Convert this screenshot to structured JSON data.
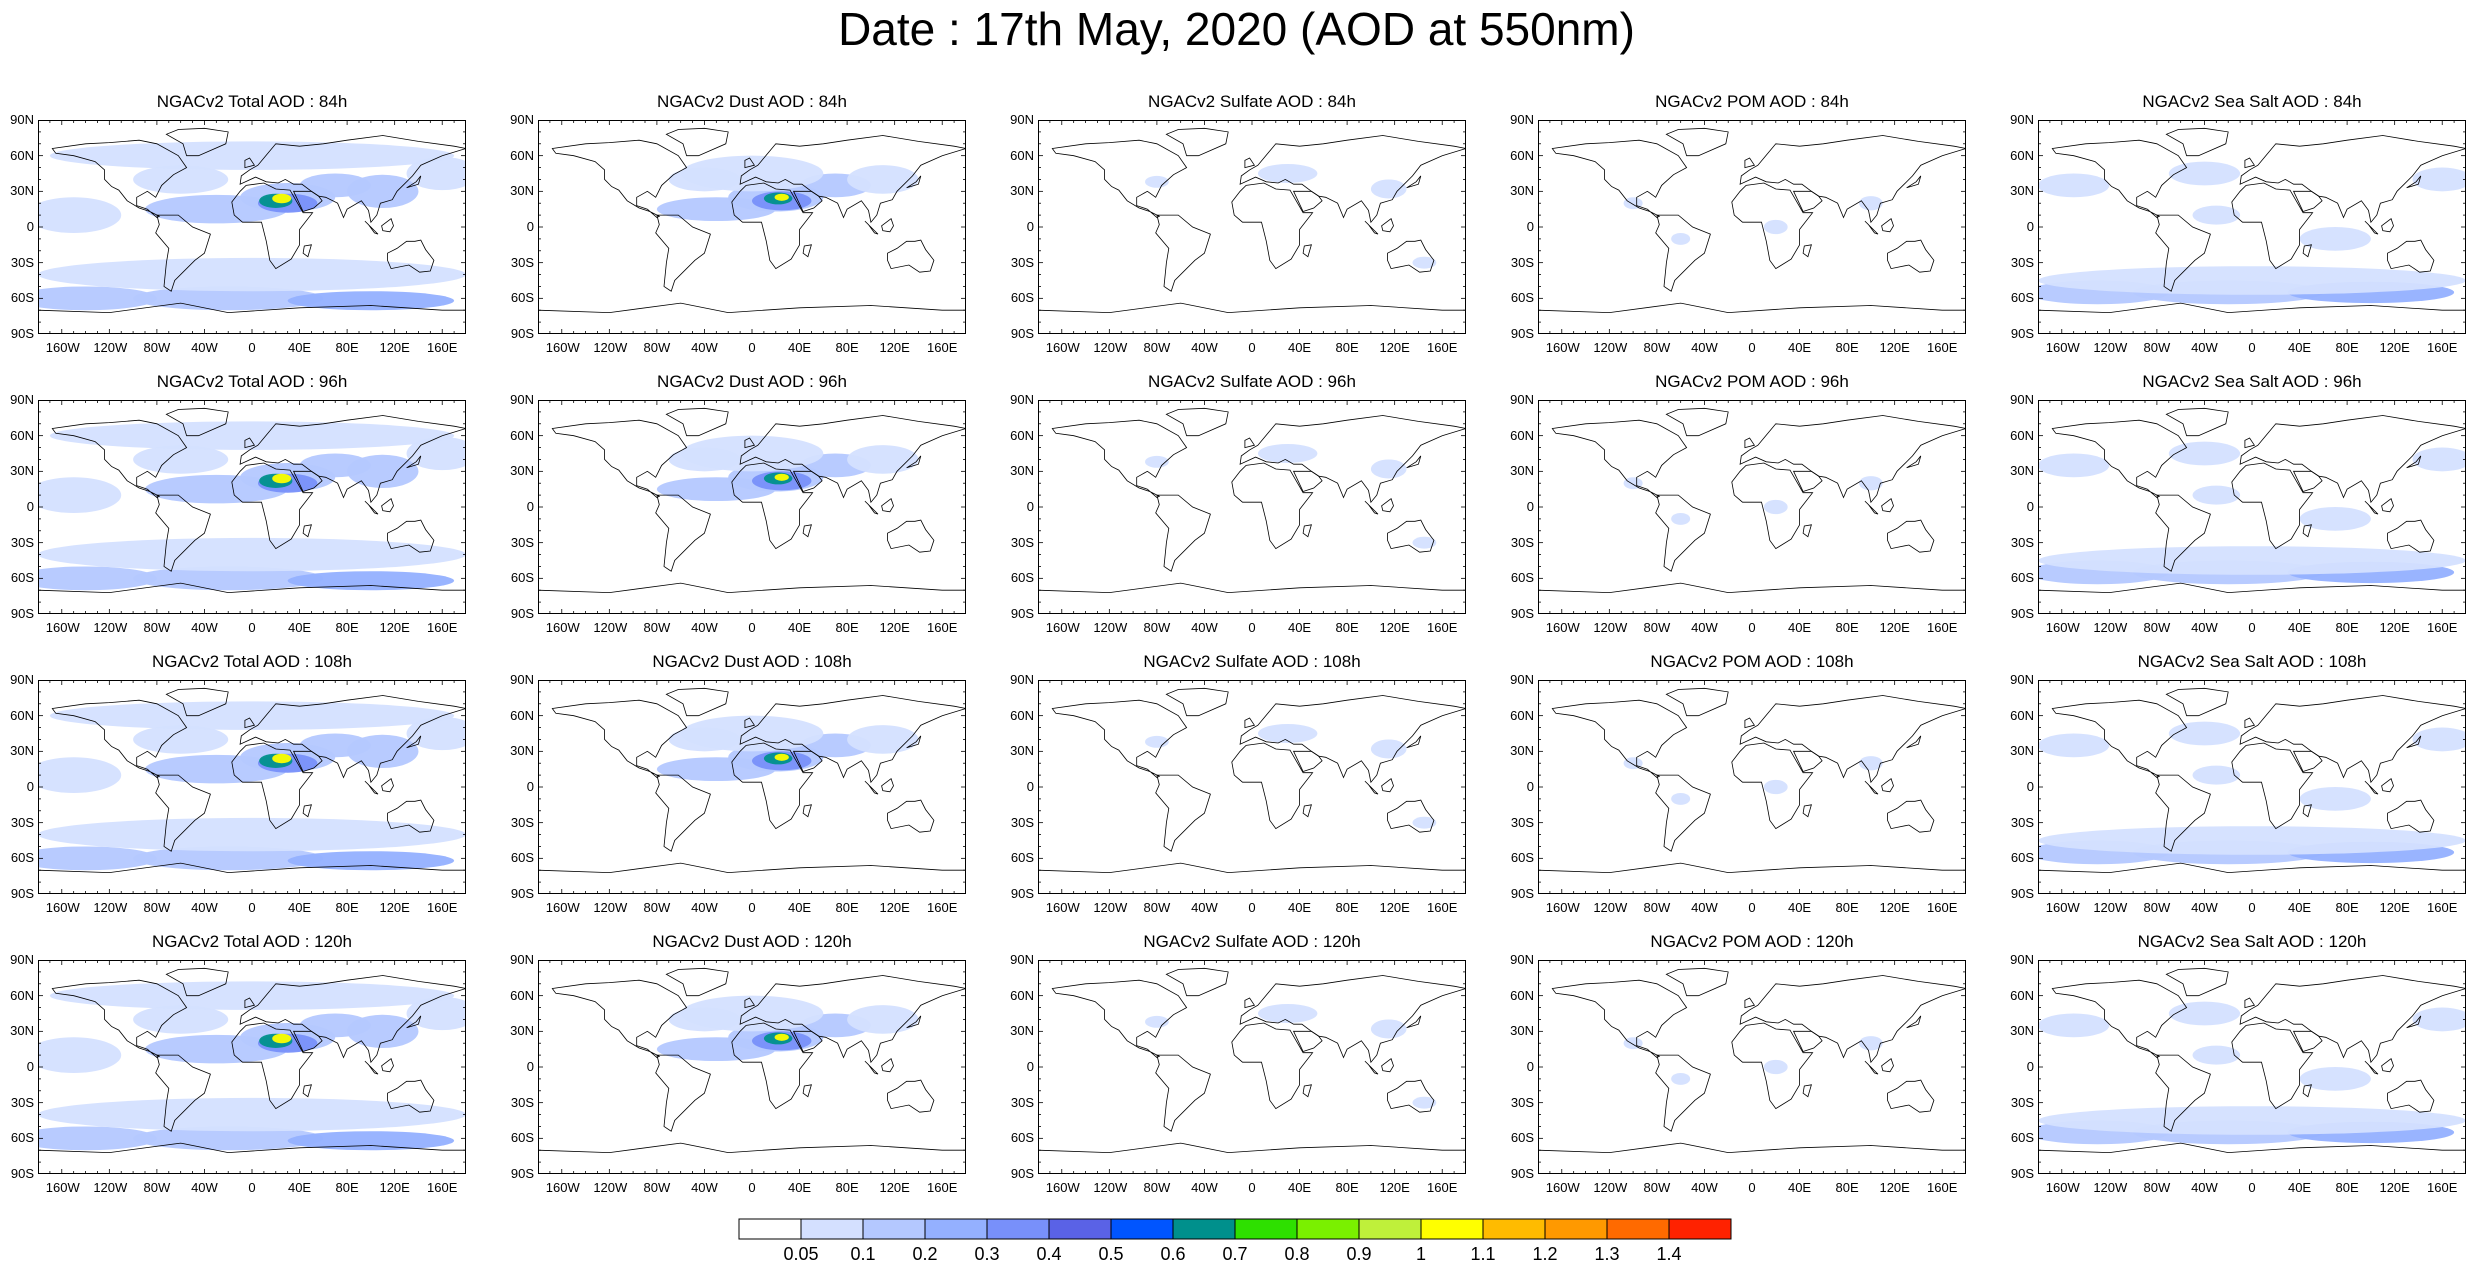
{
  "title": "Date : 17th May, 2020 (AOD at 550nm)",
  "lat_ticks": [
    "90N",
    "60N",
    "30N",
    "0",
    "30S",
    "60S",
    "90S"
  ],
  "lon_ticks": [
    "160W",
    "120W",
    "80W",
    "40W",
    "0",
    "40E",
    "80E",
    "120E",
    "160E"
  ],
  "colors": {
    "coast": "#000000",
    "levels": [
      "#ffffff",
      "#d4e0ff",
      "#b4c8ff",
      "#94b0ff",
      "#7890fa",
      "#5a62e6",
      "#0055ff",
      "#00908c",
      "#2ee000",
      "#7af000",
      "#bff03a",
      "#ffff00",
      "#ffbb00",
      "#ff9900",
      "#ff6a00",
      "#ff2200"
    ]
  },
  "colorbar_labels": [
    "0.05",
    "0.1",
    "0.2",
    "0.3",
    "0.4",
    "0.5",
    "0.6",
    "0.7",
    "0.8",
    "0.9",
    "1",
    "1.1",
    "1.2",
    "1.3",
    "1.4"
  ],
  "rows": [
    {
      "hour": "84h",
      "panels": [
        {
          "title": "NGACv2 Total AOD : 84h",
          "kind": "total"
        },
        {
          "title": "NGACv2 Dust AOD : 84h",
          "kind": "dust"
        },
        {
          "title": "NGACv2 Sulfate AOD : 84h",
          "kind": "sulfate"
        },
        {
          "title": "NGACv2 POM AOD : 84h",
          "kind": "pom"
        },
        {
          "title": "NGACv2 Sea Salt AOD : 84h",
          "kind": "seasalt"
        }
      ]
    },
    {
      "hour": "96h",
      "panels": [
        {
          "title": "NGACv2 Total AOD : 96h",
          "kind": "total"
        },
        {
          "title": "NGACv2 Dust AOD : 96h",
          "kind": "dust"
        },
        {
          "title": "NGACv2 Sulfate AOD : 96h",
          "kind": "sulfate"
        },
        {
          "title": "NGACv2 POM AOD : 96h",
          "kind": "pom"
        },
        {
          "title": "NGACv2 Sea Salt AOD : 96h",
          "kind": "seasalt"
        }
      ]
    },
    {
      "hour": "108h",
      "panels": [
        {
          "title": "NGACv2 Total AOD : 108h",
          "kind": "total"
        },
        {
          "title": "NGACv2 Dust AOD : 108h",
          "kind": "dust"
        },
        {
          "title": "NGACv2 Sulfate AOD : 108h",
          "kind": "sulfate"
        },
        {
          "title": "NGACv2 POM AOD : 108h",
          "kind": "pom"
        },
        {
          "title": "NGACv2 Sea Salt AOD : 108h",
          "kind": "seasalt"
        }
      ]
    },
    {
      "hour": "120h",
      "panels": [
        {
          "title": "NGACv2 Total AOD : 120h",
          "kind": "total"
        },
        {
          "title": "NGACv2 Dust AOD : 120h",
          "kind": "dust"
        },
        {
          "title": "NGACv2 Sulfate AOD : 120h",
          "kind": "sulfate"
        },
        {
          "title": "NGACv2 POM AOD : 120h",
          "kind": "pom"
        },
        {
          "title": "NGACv2 Sea Salt  AOD : 120h",
          "kind": "seasalt"
        }
      ]
    }
  ]
}
